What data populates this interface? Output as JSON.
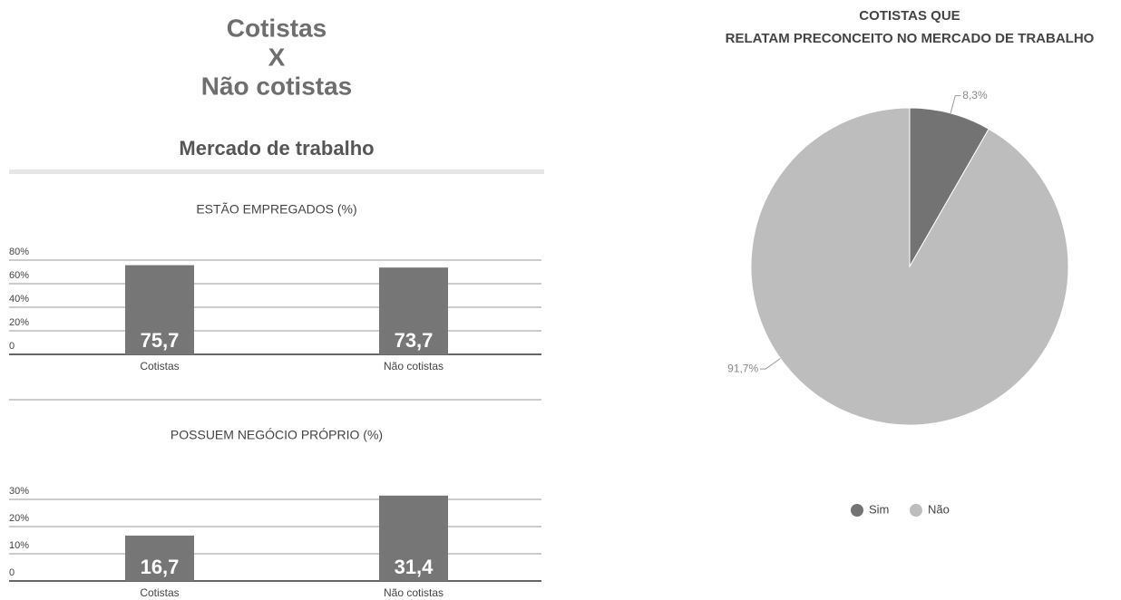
{
  "header": {
    "title": [
      "Cotistas",
      "X",
      "Não cotistas"
    ],
    "subtitle": "Mercado de trabalho"
  },
  "chart_data": [
    {
      "type": "bar",
      "title": "ESTÃO EMPREGADOS (%)",
      "categories": [
        "Cotistas",
        "Não cotistas"
      ],
      "values": [
        75.7,
        73.7
      ],
      "value_labels": [
        "75,7",
        "73,7"
      ],
      "color": "#767676",
      "ylim": [
        0,
        80
      ],
      "yticks": [
        0,
        {
          "value": 20,
          "label": "20%"
        },
        {
          "value": 40,
          "label": "40%"
        },
        {
          "value": 60,
          "label": "60%"
        },
        {
          "value": 80,
          "label": "80%"
        }
      ],
      "grid": true
    },
    {
      "type": "bar",
      "title": "POSSUEM NEGÓCIO PRÓPRIO (%)",
      "categories": [
        "Cotistas",
        "Não cotistas"
      ],
      "values": [
        16.7,
        31.4
      ],
      "value_labels": [
        "16,7",
        "31,4"
      ],
      "color": "#767676",
      "ylim": [
        0,
        30
      ],
      "yticks": [
        0,
        {
          "value": 10,
          "label": "10%"
        },
        {
          "value": 20,
          "label": "20%"
        },
        {
          "value": 30,
          "label": "30%"
        }
      ],
      "grid": true
    },
    {
      "type": "pie",
      "title": [
        "COTISTAS QUE",
        "RELATAM PRECONCEITO NO MERCADO DE TRABALHO"
      ],
      "categories": [
        "Sim",
        "Não"
      ],
      "values": [
        8.3,
        91.7
      ],
      "value_labels": [
        "8,3%",
        "91,7%"
      ],
      "colors": [
        "#737373",
        "#bdbdbd"
      ],
      "legend": "bottom"
    }
  ]
}
